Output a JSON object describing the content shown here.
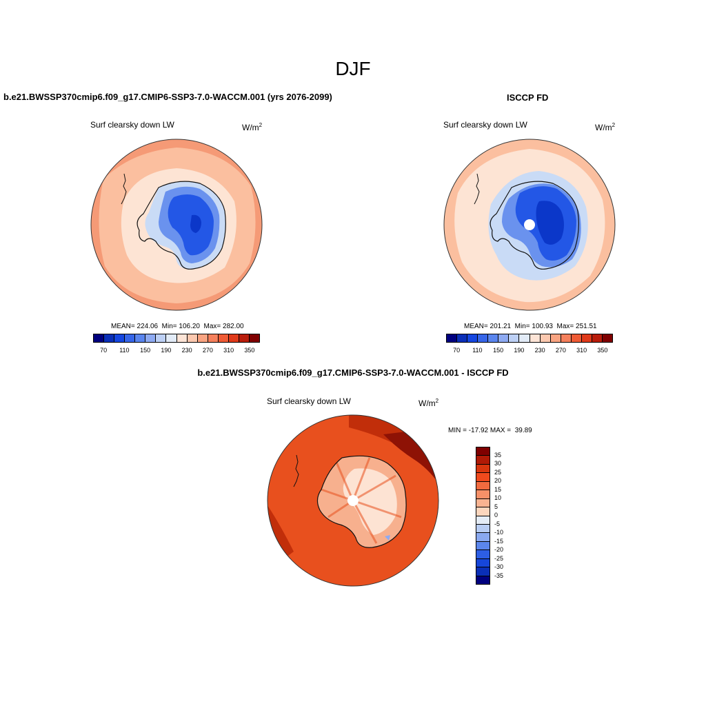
{
  "figure": {
    "title": "DJF"
  },
  "panels": {
    "model": {
      "title": "b.e21.BWSSP370cmip6.f09_g17.CMIP6-SSP3-7.0-WACCM.001 (yrs 2076-2099)",
      "variable": "Surf clearsky down LW",
      "units_base": "W/m",
      "units_exp": "2",
      "stats": "MEAN= 224.06  Min= 106.20  Max= 282.00"
    },
    "obs": {
      "title": "ISCCP FD",
      "variable": "Surf clearsky down LW",
      "units_base": "W/m",
      "units_exp": "2",
      "stats": "MEAN= 201.21  Min= 100.93  Max= 251.51"
    },
    "diff": {
      "title": "b.e21.BWSSP370cmip6.f09_g17.CMIP6-SSP3-7.0-WACCM.001 - ISCCP FD",
      "variable": "Surf clearsky down LW",
      "units_base": "W/m",
      "units_exp": "2",
      "stats": "MIN = -17.92 MAX =  39.89"
    }
  },
  "colorbar_abs": {
    "colors": [
      "#00007f",
      "#0a2fb8",
      "#1546e0",
      "#3665e8",
      "#5a85ee",
      "#8eaaf2",
      "#bdd0f5",
      "#e2ebf7",
      "#fde4d6",
      "#fbc8af",
      "#f9a482",
      "#f5805c",
      "#ef5b35",
      "#e03a1a",
      "#b91d0c",
      "#7f0000"
    ],
    "labels": [
      "70",
      "110",
      "150",
      "190",
      "230",
      "270",
      "310",
      "350"
    ]
  },
  "colorbar_diff": {
    "colors": [
      "#7f0000",
      "#b01a06",
      "#d8360e",
      "#f04a1d",
      "#f26b3f",
      "#f69068",
      "#f9b391",
      "#fcd6bd",
      "#e4ecf6",
      "#b8cdf3",
      "#8aa9f0",
      "#5b86ec",
      "#2d5ee4",
      "#1646da",
      "#0a2fb8",
      "#00007f"
    ],
    "labels": [
      "35",
      "30",
      "25",
      "20",
      "15",
      "10",
      "5",
      "0",
      "-5",
      "-10",
      "-15",
      "-20",
      "-25",
      "-30",
      "-35"
    ]
  },
  "map_colors": {
    "ocean_outer": "#f59a76",
    "ocean_mid": "#fbbf9f",
    "ocean_inner": "#fde4d4",
    "ice_light": "#c9dbf6",
    "ice_mid": "#6a92ee",
    "ice_dark": "#2357e6",
    "ice_core": "#0b37c9",
    "diff_bg": "#e8501e",
    "diff_dark": "#c12e0a",
    "diff_maroon": "#8e1205",
    "diff_light": "#f7b08e",
    "diff_pale": "#fde3d3",
    "coast": "#111111"
  }
}
